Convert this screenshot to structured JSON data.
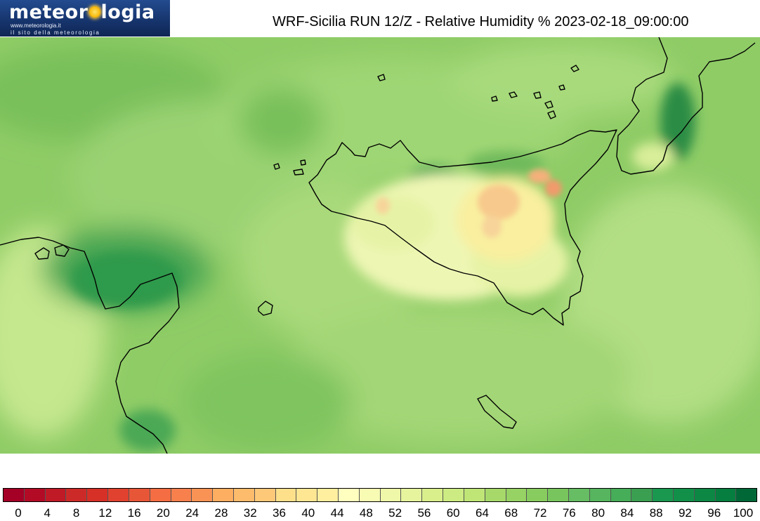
{
  "logo": {
    "pre": "meteor",
    "post": "logia",
    "url": "www.meteorologia.it",
    "tagline": "il sito della meteorologia"
  },
  "title": "WRF-Sicilia RUN 12/Z - Relative Humidity % 2023-02-18_09:00:00",
  "colorbar": {
    "colors": [
      "#a50026",
      "#b30b26",
      "#c01a27",
      "#cc2a28",
      "#d73027",
      "#e0422f",
      "#e85638",
      "#f46d43",
      "#f7804d",
      "#f99355",
      "#fdae61",
      "#fdbb6c",
      "#fec879",
      "#fee08b",
      "#fee693",
      "#ffef9e",
      "#ffffbf",
      "#f7fbb4",
      "#eef8a8",
      "#e6f49d",
      "#d9ef8b",
      "#cceb82",
      "#bfe577",
      "#a6d96a",
      "#97d265",
      "#88cc60",
      "#79c55d",
      "#66bd63",
      "#56b55e",
      "#46ad58",
      "#3a9f51",
      "#1a9850",
      "#129049",
      "#0c8744",
      "#067e3f",
      "#006837"
    ],
    "ticks": [
      "0",
      "4",
      "8",
      "12",
      "16",
      "20",
      "24",
      "28",
      "32",
      "36",
      "40",
      "44",
      "48",
      "52",
      "56",
      "60",
      "64",
      "68",
      "72",
      "76",
      "80",
      "84",
      "88",
      "92",
      "96",
      "100"
    ]
  }
}
